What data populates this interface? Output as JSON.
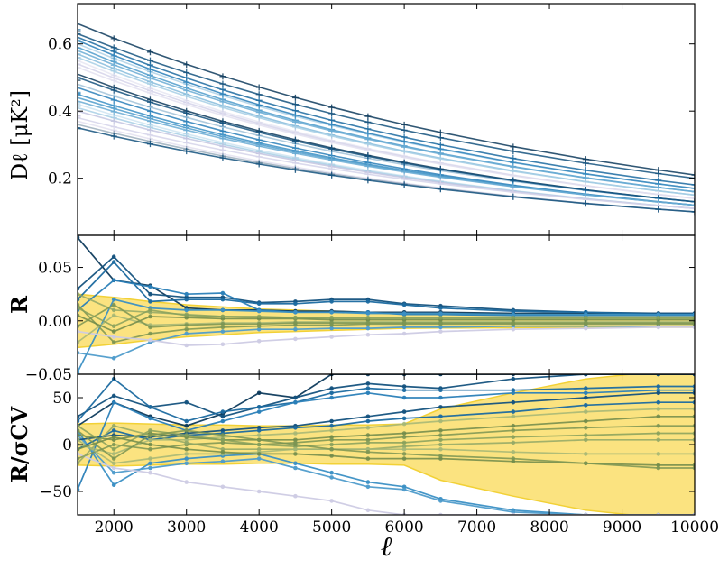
{
  "chart_data": [
    {
      "type": "line",
      "panel": "top",
      "ylabel": "Dℓ [μK²]",
      "x": [
        1500,
        2000,
        2500,
        3000,
        3500,
        4000,
        4500,
        5000,
        5500,
        6000,
        6500,
        7500,
        8500,
        9500,
        10000
      ],
      "xlim": [
        1500,
        10000
      ],
      "ylim": [
        0.03,
        0.72
      ],
      "yticks": [
        0.2,
        0.4,
        0.6
      ],
      "ytick_labels": [
        "0.2",
        "0.4",
        "0.6"
      ],
      "markers": "+",
      "n_series": 26,
      "start_values": [
        0.66,
        0.63,
        0.62,
        0.61,
        0.6,
        0.59,
        0.58,
        0.57,
        0.56,
        0.55,
        0.54,
        0.53,
        0.51,
        0.5,
        0.48,
        0.47,
        0.45,
        0.44,
        0.43,
        0.42,
        0.41,
        0.4,
        0.38,
        0.37,
        0.36,
        0.35
      ],
      "end_values": [
        0.21,
        0.2,
        0.18,
        0.17,
        0.17,
        0.16,
        0.16,
        0.15,
        0.15,
        0.14,
        0.14,
        0.14,
        0.13,
        0.13,
        0.13,
        0.12,
        0.12,
        0.12,
        0.12,
        0.11,
        0.11,
        0.11,
        0.11,
        0.1,
        0.1,
        0.1
      ]
    },
    {
      "type": "line",
      "panel": "middle",
      "ylabel": "R",
      "x": [
        1500,
        2000,
        2500,
        3000,
        3500,
        4000,
        4500,
        5000,
        5500,
        6000,
        6500,
        7500,
        8500,
        9500,
        10000
      ],
      "xlim": [
        1500,
        10000
      ],
      "ylim": [
        -0.05,
        0.08
      ],
      "yticks": [
        -0.05,
        0.0,
        0.05
      ],
      "ytick_labels": [
        "−0.05",
        "0.00",
        "0.05"
      ],
      "band_halfwidth": [
        0.025,
        0.022,
        0.018,
        0.015,
        0.013,
        0.011,
        0.01,
        0.009,
        0.008,
        0.007,
        0.0068,
        0.0065,
        0.0062,
        0.006,
        0.006
      ],
      "series": [
        {
          "values": [
            0.078,
            0.038,
            0.033,
            0.012,
            0.01,
            0.01,
            0.009,
            0.009,
            0.008,
            0.008,
            0.008,
            0.007,
            0.007,
            0.007,
            0.007
          ]
        },
        {
          "values": [
            0.03,
            0.06,
            0.025,
            0.022,
            0.022,
            0.017,
            0.018,
            0.02,
            0.02,
            0.016,
            0.014,
            0.01,
            0.008,
            0.007,
            0.007
          ]
        },
        {
          "values": [
            0.02,
            0.055,
            0.018,
            0.02,
            0.02,
            0.016,
            0.016,
            0.018,
            0.018,
            0.015,
            0.012,
            0.009,
            0.008,
            0.006,
            0.006
          ]
        },
        {
          "values": [
            0.01,
            0.038,
            0.032,
            0.025,
            0.026,
            0.01,
            0.008,
            0.008,
            0.008,
            0.006,
            0.006,
            0.005,
            0.005,
            0.005,
            0.005
          ]
        },
        {
          "values": [
            -0.048,
            0.02,
            0.012,
            0.01,
            0.01,
            0.009,
            0.008,
            0.008,
            0.007,
            0.007,
            0.007,
            0.006,
            0.006,
            0.006,
            0.006
          ]
        },
        {
          "values": [
            -0.03,
            -0.035,
            -0.02,
            -0.012,
            -0.01,
            -0.008,
            -0.008,
            -0.007,
            -0.007,
            -0.006,
            -0.006,
            -0.005,
            -0.005,
            -0.005,
            -0.005
          ]
        },
        {
          "values": [
            0.015,
            -0.02,
            -0.012,
            -0.008,
            -0.006,
            -0.005,
            -0.004,
            -0.004,
            -0.003,
            -0.003,
            -0.003,
            -0.003,
            -0.003,
            -0.003,
            -0.003
          ]
        },
        {
          "values": [
            -0.01,
            -0.015,
            -0.018,
            -0.023,
            -0.022,
            -0.019,
            -0.017,
            -0.015,
            -0.013,
            -0.012,
            -0.01,
            -0.008,
            -0.007,
            -0.006,
            -0.006
          ]
        },
        {
          "values": [
            0.025,
            0.01,
            0.008,
            0.006,
            0.004,
            0.003,
            0.003,
            0.002,
            0.002,
            0.002,
            0.002,
            0.002,
            0.002,
            0.002,
            0.002
          ]
        },
        {
          "values": [
            -0.02,
            0.005,
            -0.004,
            -0.003,
            -0.002,
            -0.002,
            -0.001,
            -0.001,
            -0.001,
            -0.001,
            -0.001,
            -0.001,
            -0.001,
            -0.001,
            -0.001
          ]
        },
        {
          "values": [
            0.005,
            -0.01,
            0.004,
            0.003,
            0.002,
            0.002,
            0.002,
            0.001,
            0.001,
            0.001,
            0.001,
            0.001,
            0.001,
            0.001,
            0.001
          ]
        },
        {
          "values": [
            -0.005,
            0.015,
            -0.006,
            -0.004,
            -0.003,
            -0.003,
            -0.002,
            -0.002,
            -0.002,
            -0.002,
            -0.002,
            -0.002,
            -0.002,
            -0.002,
            -0.002
          ]
        },
        {
          "values": [
            0.012,
            -0.005,
            0.01,
            0.005,
            0.004,
            0.004,
            0.003,
            0.003,
            0.003,
            0.003,
            0.003,
            0.003,
            0.003,
            0.003,
            0.003
          ]
        }
      ]
    },
    {
      "type": "line",
      "panel": "bottom",
      "ylabel": "R/σCV",
      "xlabel": "ℓ",
      "x": [
        1500,
        2000,
        2500,
        3000,
        3500,
        4000,
        4500,
        5000,
        5500,
        6000,
        6500,
        7500,
        8500,
        9500,
        10000
      ],
      "xlim": [
        1500,
        10000
      ],
      "ylim": [
        -75,
        75
      ],
      "xticks": [
        2000,
        3000,
        4000,
        5000,
        6000,
        7000,
        8000,
        9000,
        10000
      ],
      "xtick_labels": [
        "2000",
        "3000",
        "4000",
        "5000",
        "6000",
        "7000",
        "8000",
        "9000",
        "10000"
      ],
      "yticks": [
        -50,
        0,
        50
      ],
      "ytick_labels": [
        "−50",
        "0",
        "50"
      ],
      "band_halfwidth": [
        22,
        23,
        22,
        21,
        21,
        20,
        20,
        21,
        21,
        22,
        38,
        55,
        70,
        78,
        80
      ],
      "series": [
        {
          "values": [
            20,
            45,
            30,
            20,
            33,
            55,
            50,
            75,
            75,
            75,
            75,
            75,
            75,
            75,
            75
          ]
        },
        {
          "values": [
            30,
            52,
            40,
            45,
            30,
            40,
            50,
            60,
            65,
            62,
            60,
            70,
            75,
            75,
            75
          ]
        },
        {
          "values": [
            25,
            70,
            40,
            25,
            35,
            40,
            45,
            55,
            60,
            58,
            58,
            58,
            60,
            62,
            62
          ]
        },
        {
          "values": [
            -48,
            45,
            28,
            15,
            25,
            35,
            45,
            50,
            55,
            50,
            50,
            55,
            55,
            58,
            58
          ]
        },
        {
          "values": [
            15,
            -43,
            -20,
            -15,
            -12,
            -10,
            -20,
            -30,
            -40,
            -45,
            -58,
            -70,
            -75,
            -75,
            -75
          ]
        },
        {
          "values": [
            10,
            -30,
            -25,
            -20,
            -18,
            -15,
            -25,
            -35,
            -45,
            -48,
            -60,
            -72,
            -75,
            -75,
            -75
          ]
        },
        {
          "values": [
            -10,
            -25,
            -30,
            -40,
            -45,
            -50,
            -55,
            -60,
            -70,
            -75,
            -75,
            -75,
            -75,
            -75,
            -75
          ]
        },
        {
          "values": [
            5,
            10,
            8,
            12,
            15,
            18,
            20,
            25,
            30,
            35,
            40,
            45,
            50,
            55,
            55
          ]
        },
        {
          "values": [
            -5,
            15,
            5,
            10,
            12,
            15,
            18,
            20,
            25,
            28,
            30,
            35,
            42,
            45,
            45
          ]
        },
        {
          "values": [
            0,
            -10,
            5,
            5,
            8,
            10,
            12,
            15,
            18,
            22,
            25,
            30,
            35,
            38,
            38
          ]
        },
        {
          "values": [
            10,
            5,
            12,
            8,
            5,
            5,
            5,
            8,
            10,
            12,
            15,
            20,
            25,
            30,
            30
          ]
        },
        {
          "values": [
            -15,
            0,
            -5,
            0,
            2,
            0,
            2,
            5,
            5,
            8,
            10,
            15,
            18,
            20,
            20
          ]
        },
        {
          "values": [
            20,
            -5,
            15,
            10,
            5,
            0,
            -2,
            0,
            2,
            2,
            5,
            8,
            10,
            12,
            12
          ]
        },
        {
          "values": [
            -20,
            20,
            10,
            2,
            -5,
            -5,
            -5,
            -5,
            -5,
            -2,
            0,
            2,
            5,
            5,
            5
          ]
        },
        {
          "values": [
            5,
            -20,
            -15,
            -10,
            -10,
            -8,
            -5,
            -5,
            -5,
            -5,
            -5,
            -8,
            -10,
            -10,
            -10
          ]
        },
        {
          "values": [
            -5,
            8,
            0,
            -5,
            -8,
            -10,
            -10,
            -12,
            -15,
            -15,
            -15,
            -18,
            -20,
            -22,
            -22
          ]
        },
        {
          "values": [
            15,
            -15,
            10,
            15,
            10,
            5,
            0,
            -5,
            -8,
            -10,
            -12,
            -15,
            -20,
            -25,
            -25
          ]
        }
      ]
    }
  ]
}
